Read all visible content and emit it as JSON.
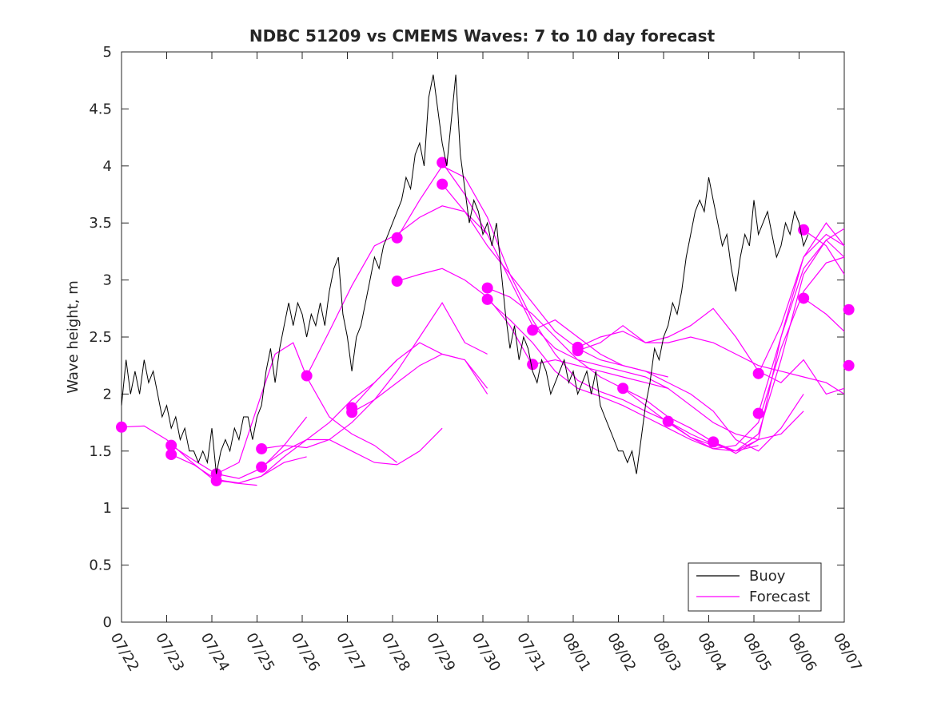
{
  "chart_data": {
    "type": "line",
    "title": "NDBC 51209 vs CMEMS Waves: 7 to 10 day forecast",
    "xlabel": "",
    "ylabel": "Wave height, m",
    "xlim": [
      0,
      16
    ],
    "ylim": [
      0,
      5
    ],
    "grid": false,
    "legend_position": "bottom-right",
    "x_ticks": [
      "07/22",
      "07/23",
      "07/24",
      "07/25",
      "07/26",
      "07/27",
      "07/28",
      "07/29",
      "07/30",
      "07/31",
      "08/01",
      "08/02",
      "08/03",
      "08/04",
      "08/05",
      "08/06",
      "08/07"
    ],
    "y_ticks": [
      "0",
      "0.5",
      "1",
      "1.5",
      "2",
      "2.5",
      "3",
      "3.5",
      "4",
      "4.5",
      "5"
    ],
    "colors": {
      "buoy": "#000000",
      "forecast": "#ff00ff"
    },
    "legend": [
      {
        "label": "Buoy",
        "color": "#000000"
      },
      {
        "label": "Forecast",
        "color": "#ff00ff"
      }
    ],
    "buoy": {
      "name": "Buoy",
      "x": [
        0,
        0.1,
        0.2,
        0.3,
        0.4,
        0.5,
        0.6,
        0.7,
        0.8,
        0.9,
        1.0,
        1.1,
        1.2,
        1.3,
        1.4,
        1.5,
        1.6,
        1.7,
        1.8,
        1.9,
        2.0,
        2.1,
        2.2,
        2.3,
        2.4,
        2.5,
        2.6,
        2.7,
        2.8,
        2.9,
        3.0,
        3.1,
        3.2,
        3.3,
        3.4,
        3.5,
        3.6,
        3.7,
        3.8,
        3.9,
        4.0,
        4.1,
        4.2,
        4.3,
        4.4,
        4.5,
        4.6,
        4.7,
        4.8,
        4.9,
        5.0,
        5.1,
        5.2,
        5.3,
        5.4,
        5.5,
        5.6,
        5.7,
        5.8,
        5.9,
        6.0,
        6.1,
        6.2,
        6.3,
        6.4,
        6.5,
        6.6,
        6.7,
        6.8,
        6.9,
        7.0,
        7.1,
        7.2,
        7.3,
        7.4,
        7.5,
        7.6,
        7.7,
        7.8,
        7.9,
        8.0,
        8.1,
        8.2,
        8.3,
        8.4,
        8.5,
        8.6,
        8.7,
        8.8,
        8.9,
        9.0,
        9.1,
        9.2,
        9.3,
        9.4,
        9.5,
        9.6,
        9.7,
        9.8,
        9.9,
        10.0,
        10.1,
        10.2,
        10.3,
        10.4,
        10.5,
        10.6,
        10.7,
        10.8,
        10.9,
        11.0,
        11.1,
        11.2,
        11.3,
        11.4,
        11.5,
        11.6,
        11.7,
        11.8,
        11.9,
        12.0,
        12.1,
        12.2,
        12.3,
        12.4,
        12.5,
        12.6,
        12.7,
        12.8,
        12.9,
        13.0,
        13.1,
        13.2,
        13.3,
        13.4,
        13.5,
        13.6,
        13.7,
        13.8,
        13.9,
        14.0,
        14.1,
        14.2,
        14.3,
        14.4,
        14.5,
        14.6,
        14.7,
        14.8,
        14.9,
        15.0,
        15.1,
        15.2
      ],
      "values": [
        1.9,
        2.3,
        2.0,
        2.2,
        2.0,
        2.3,
        2.1,
        2.2,
        2.0,
        1.8,
        1.9,
        1.7,
        1.8,
        1.6,
        1.7,
        1.5,
        1.5,
        1.4,
        1.5,
        1.4,
        1.7,
        1.3,
        1.5,
        1.6,
        1.5,
        1.7,
        1.6,
        1.8,
        1.8,
        1.6,
        1.8,
        1.9,
        2.2,
        2.4,
        2.1,
        2.4,
        2.6,
        2.8,
        2.6,
        2.8,
        2.7,
        2.5,
        2.7,
        2.6,
        2.8,
        2.6,
        2.9,
        3.1,
        3.2,
        2.7,
        2.5,
        2.2,
        2.5,
        2.6,
        2.8,
        3.0,
        3.2,
        3.1,
        3.3,
        3.4,
        3.5,
        3.6,
        3.7,
        3.9,
        3.8,
        4.1,
        4.2,
        4.0,
        4.6,
        4.8,
        4.5,
        4.2,
        4.0,
        4.4,
        4.8,
        4.1,
        3.8,
        3.5,
        3.7,
        3.6,
        3.4,
        3.5,
        3.3,
        3.5,
        3.1,
        2.7,
        2.4,
        2.6,
        2.3,
        2.5,
        2.4,
        2.2,
        2.1,
        2.3,
        2.2,
        2.0,
        2.1,
        2.2,
        2.3,
        2.1,
        2.2,
        2.0,
        2.1,
        2.2,
        2.0,
        2.2,
        1.9,
        1.8,
        1.7,
        1.6,
        1.5,
        1.5,
        1.4,
        1.5,
        1.3,
        1.6,
        1.9,
        2.1,
        2.4,
        2.3,
        2.5,
        2.6,
        2.8,
        2.7,
        2.9,
        3.2,
        3.4,
        3.6,
        3.7,
        3.6,
        3.9,
        3.7,
        3.5,
        3.3,
        3.4,
        3.1,
        2.9,
        3.2,
        3.4,
        3.3,
        3.7,
        3.4,
        3.5,
        3.6,
        3.4,
        3.2,
        3.3,
        3.5,
        3.4,
        3.6,
        3.5,
        3.3,
        3.4
      ]
    },
    "forecasts": [
      {
        "name": "",
        "x": [
          0,
          0.5,
          1,
          1.5,
          2,
          2.5,
          3
        ],
        "values": [
          1.71,
          1.72,
          1.6,
          1.42,
          1.26,
          1.22,
          1.2
        ],
        "marker": 0
      },
      {
        "name": "",
        "x": [
          1.1,
          1.6,
          2.1,
          2.6,
          3.1,
          3.6,
          4.1
        ],
        "values": [
          1.47,
          1.38,
          1.25,
          1.22,
          1.28,
          1.4,
          1.45
        ],
        "marker": 0
      },
      {
        "name": "",
        "x": [
          1.1,
          1.6,
          2.1,
          2.6,
          3.1,
          3.6,
          4.1
        ],
        "values": [
          1.55,
          1.42,
          1.3,
          1.26,
          1.35,
          1.55,
          1.8
        ],
        "marker": 0
      },
      {
        "name": "",
        "x": [
          2.1,
          2.6,
          3.1,
          3.6,
          4.1,
          4.6,
          5.1,
          5.6,
          6.1
        ],
        "values": [
          1.24,
          1.22,
          1.28,
          1.45,
          1.6,
          1.75,
          1.95,
          2.1,
          2.3
        ],
        "marker": 0
      },
      {
        "name": "",
        "x": [
          2.1,
          2.6,
          3.1,
          3.4,
          3.8,
          4.1,
          4.6,
          5.1,
          5.6,
          6.1
        ],
        "values": [
          1.3,
          1.4,
          2.0,
          2.35,
          2.45,
          2.15,
          1.8,
          1.65,
          1.55,
          1.4
        ],
        "marker": 0
      },
      {
        "name": "",
        "x": [
          3.1,
          3.6,
          4.1,
          4.6,
          5.1,
          5.6,
          6.1,
          6.6,
          7.1
        ],
        "values": [
          1.36,
          1.5,
          1.6,
          1.6,
          1.5,
          1.4,
          1.38,
          1.5,
          1.7
        ],
        "marker": 0
      },
      {
        "name": "",
        "x": [
          3.1,
          3.6,
          4.1,
          4.6,
          5.1,
          5.6,
          6.1,
          6.6,
          7.1,
          7.6,
          8.1
        ],
        "values": [
          1.52,
          1.55,
          1.53,
          1.6,
          1.75,
          1.95,
          2.1,
          2.25,
          2.35,
          2.3,
          2.0
        ],
        "marker": 0
      },
      {
        "name": "",
        "x": [
          4.1,
          4.6,
          5.1,
          5.6,
          6.1,
          6.6,
          7.1,
          7.6,
          8.1
        ],
        "values": [
          2.16,
          2.55,
          2.95,
          3.3,
          3.4,
          3.55,
          3.65,
          3.6,
          3.4
        ],
        "marker": 0
      },
      {
        "name": "",
        "x": [
          5.1,
          5.6,
          6.1,
          6.6,
          7.1,
          7.6,
          8.1
        ],
        "values": [
          1.84,
          1.95,
          2.2,
          2.5,
          2.8,
          2.45,
          2.35
        ],
        "marker": 0
      },
      {
        "name": "",
        "x": [
          5.1,
          5.6,
          6.1,
          6.6,
          7.1,
          7.6,
          8.1
        ],
        "values": [
          1.88,
          2.1,
          2.3,
          2.45,
          2.35,
          2.3,
          2.05
        ],
        "marker": 0
      },
      {
        "name": "",
        "x": [
          6.1,
          6.6,
          7.1,
          7.6,
          8.1,
          8.6,
          9.1
        ],
        "values": [
          2.99,
          3.05,
          3.1,
          3.0,
          2.85,
          2.6,
          2.25
        ],
        "marker": 0
      },
      {
        "name": "",
        "x": [
          6.1,
          6.6,
          7.1,
          7.6,
          8.1,
          8.6,
          9.1,
          9.6,
          10.1,
          10.6,
          11.1,
          11.6,
          12.1,
          12.6,
          13.1
        ],
        "values": [
          3.37,
          3.7,
          4.0,
          3.9,
          3.55,
          3.05,
          2.65,
          2.35,
          2.12,
          2.02,
          1.95,
          1.85,
          1.76,
          1.62,
          1.55
        ],
        "marker": 0
      },
      {
        "name": "",
        "x": [
          7.1,
          7.6,
          8.1,
          8.6,
          9.1,
          9.6,
          10.1,
          10.6,
          11.1,
          11.6,
          12.1
        ],
        "values": [
          4.03,
          3.75,
          3.4,
          3.0,
          2.6,
          2.4,
          2.3,
          2.25,
          2.2,
          2.15,
          2.05
        ],
        "marker": 0
      },
      {
        "name": "",
        "x": [
          7.1,
          7.6,
          8.1,
          8.6,
          9.1,
          9.6,
          10.1,
          10.6,
          11.1,
          11.6,
          12.1
        ],
        "values": [
          3.84,
          3.6,
          3.3,
          3.05,
          2.8,
          2.55,
          2.4,
          2.3,
          2.25,
          2.2,
          2.15
        ],
        "marker": 0
      },
      {
        "name": "",
        "x": [
          8.1,
          8.6,
          9.1,
          9.6,
          10.1,
          10.6,
          11.1,
          11.6,
          12.1,
          12.6,
          13.1,
          13.6,
          14.1
        ],
        "values": [
          2.93,
          2.85,
          2.7,
          2.5,
          2.3,
          2.15,
          2.05,
          1.95,
          1.8,
          1.7,
          1.58,
          1.5,
          1.55
        ],
        "marker": 0
      },
      {
        "name": "",
        "x": [
          8.1,
          8.6,
          9.1,
          9.6,
          10.1,
          10.6,
          11.1,
          11.6,
          12.1,
          12.6,
          13.1,
          13.6,
          14.1
        ],
        "values": [
          2.83,
          2.65,
          2.45,
          2.2,
          2.05,
          1.98,
          1.9,
          1.8,
          1.7,
          1.6,
          1.52,
          1.5,
          1.6
        ],
        "marker": 0
      },
      {
        "name": "",
        "x": [
          9.1,
          9.6,
          10.1,
          10.6,
          11.1,
          11.6,
          12.1,
          12.6,
          13.1,
          13.6,
          14.1,
          14.6,
          15.1
        ],
        "values": [
          2.56,
          2.65,
          2.5,
          2.35,
          2.25,
          2.2,
          2.1,
          2.0,
          1.85,
          1.6,
          1.5,
          1.7,
          2.0
        ],
        "marker": 0
      },
      {
        "name": "",
        "x": [
          9.1,
          9.6,
          10.1,
          10.6,
          11.1,
          11.6,
          12.1,
          12.6,
          13.1,
          13.6,
          14.1,
          14.6,
          15.1
        ],
        "values": [
          2.26,
          2.3,
          2.25,
          2.2,
          2.15,
          2.1,
          2.05,
          1.9,
          1.75,
          1.65,
          1.6,
          1.65,
          1.85
        ],
        "marker": 0
      },
      {
        "name": "",
        "x": [
          10.1,
          10.6,
          11.1,
          11.6,
          12.1,
          12.6,
          13.1,
          13.6,
          14.1,
          14.6,
          15.1,
          15.6,
          16.0
        ],
        "values": [
          2.41,
          2.5,
          2.55,
          2.45,
          2.5,
          2.6,
          2.75,
          2.5,
          2.2,
          2.1,
          2.3,
          2.0,
          2.05
        ],
        "marker": 0
      },
      {
        "name": "",
        "x": [
          10.1,
          10.6,
          11.1,
          11.6,
          12.1,
          12.6,
          13.1,
          13.6,
          14.1,
          14.6,
          15.1,
          15.6,
          16.0
        ],
        "values": [
          2.38,
          2.45,
          2.6,
          2.45,
          2.45,
          2.5,
          2.45,
          2.35,
          2.25,
          2.2,
          2.15,
          2.1,
          2.0
        ],
        "marker": 0
      },
      {
        "name": "",
        "x": [
          11.1,
          11.6,
          12.1,
          12.6,
          13.1,
          13.6,
          14.1,
          14.6,
          15.1,
          15.6,
          16.0
        ],
        "values": [
          2.05,
          1.9,
          1.75,
          1.62,
          1.52,
          1.55,
          1.75,
          2.4,
          2.9,
          3.15,
          3.2
        ],
        "marker": 0
      },
      {
        "name": "",
        "x": [
          12.1,
          12.6,
          13.1,
          13.6,
          14.1,
          14.6,
          15.1,
          15.6,
          16.0
        ],
        "values": [
          1.76,
          1.65,
          1.56,
          1.5,
          1.65,
          2.3,
          3.05,
          3.35,
          3.45
        ],
        "marker": 0
      },
      {
        "name": "",
        "x": [
          13.1,
          13.6,
          14.1,
          14.6,
          15.1,
          15.6,
          16.0
        ],
        "values": [
          1.58,
          1.48,
          1.6,
          2.5,
          3.2,
          3.4,
          3.3
        ],
        "marker": 0
      },
      {
        "name": "",
        "x": [
          14.1,
          14.6,
          15.1,
          15.6,
          16.0
        ],
        "values": [
          2.18,
          2.6,
          3.2,
          3.5,
          3.3
        ],
        "marker": 0
      },
      {
        "name": "",
        "x": [
          14.1,
          14.6,
          15.1,
          15.6,
          16.0
        ],
        "values": [
          1.83,
          2.5,
          3.1,
          3.35,
          3.2
        ],
        "marker": 0
      },
      {
        "name": "",
        "x": [
          15.1,
          15.6,
          16.0
        ],
        "values": [
          3.44,
          3.3,
          3.05
        ],
        "marker": 0
      },
      {
        "name": "",
        "x": [
          15.1,
          15.6,
          16.0
        ],
        "values": [
          2.84,
          2.7,
          2.55
        ],
        "marker": 0
      },
      {
        "name": "",
        "x": [
          16.1
        ],
        "values": [
          2.74
        ],
        "marker": 0
      },
      {
        "name": "",
        "x": [
          16.1
        ],
        "values": [
          2.25
        ],
        "marker": 0
      }
    ]
  }
}
